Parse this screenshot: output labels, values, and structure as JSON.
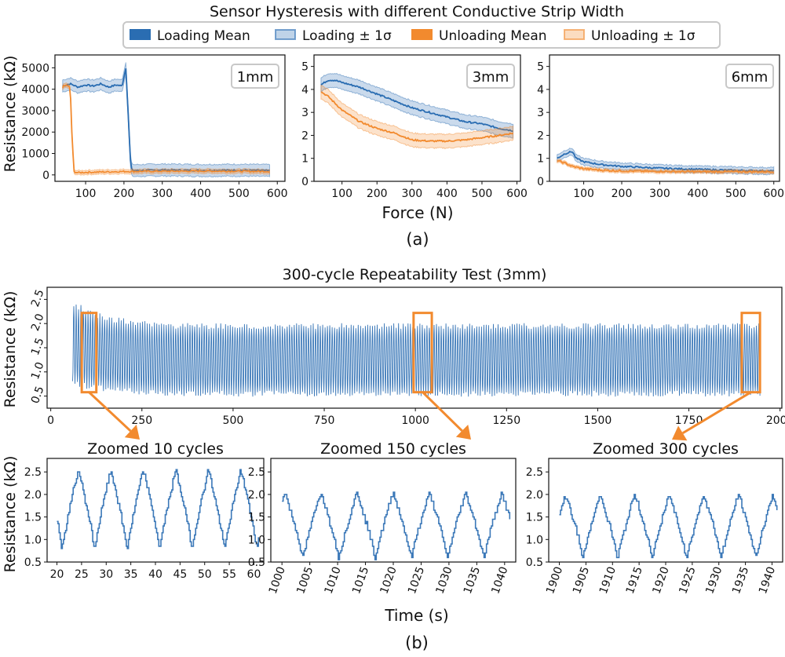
{
  "figure": {
    "top_title": "Sensor Hysteresis with different Conductive Strip Width",
    "label_a": "(a)",
    "label_b": "(b)",
    "xlabel_a": "Force (N)",
    "xlabel_b": "Time (s)",
    "ylabel": "Resistance (kΩ)",
    "colors": {
      "loading": "#2a6db2",
      "unloading": "#f28a2e",
      "zoom_box": "#f28a2e",
      "trace": "#3b78b8"
    }
  },
  "chart_data": [
    {
      "id": "hyst-1mm",
      "type": "line",
      "panel_label": "1mm",
      "xlim": [
        20,
        620
      ],
      "ylim": [
        -300,
        5600
      ],
      "xticks": [
        100,
        200,
        300,
        400,
        500,
        600
      ],
      "yticks": [
        0,
        1000,
        2000,
        3000,
        4000,
        5000
      ],
      "legend": [
        "Loading Mean",
        "Loading ± 1σ",
        "Unloading Mean",
        "Unloading ± 1σ"
      ],
      "series": [
        {
          "name": "Loading Mean",
          "x": [
            40,
            60,
            80,
            100,
            120,
            140,
            160,
            180,
            195,
            205,
            212,
            218,
            225,
            300,
            400,
            500,
            580
          ],
          "values": [
            4150,
            4250,
            4100,
            4200,
            4150,
            4250,
            4100,
            4200,
            4150,
            5000,
            2500,
            300,
            200,
            230,
            210,
            220,
            200
          ],
          "band": 280
        },
        {
          "name": "Unloading Mean",
          "x": [
            40,
            50,
            60,
            65,
            70,
            80,
            100,
            150,
            200,
            300,
            400,
            500,
            580
          ],
          "values": [
            4100,
            4200,
            4050,
            1500,
            150,
            100,
            120,
            140,
            160,
            170,
            180,
            170,
            160
          ],
          "band": 100
        }
      ]
    },
    {
      "id": "hyst-3mm",
      "type": "line",
      "panel_label": "3mm",
      "xlim": [
        20,
        610
      ],
      "ylim": [
        0,
        5.5
      ],
      "xticks": [
        100,
        200,
        300,
        400,
        500,
        600
      ],
      "yticks": [
        0,
        1,
        2,
        3,
        4,
        5
      ],
      "series": [
        {
          "name": "Loading Mean",
          "x": [
            40,
            60,
            80,
            100,
            150,
            200,
            250,
            300,
            350,
            400,
            450,
            500,
            550,
            590
          ],
          "values": [
            4.2,
            4.4,
            4.4,
            4.3,
            4.1,
            3.8,
            3.5,
            3.2,
            3.0,
            2.8,
            2.6,
            2.5,
            2.3,
            2.2
          ],
          "band": 0.3
        },
        {
          "name": "Unloading Mean",
          "x": [
            40,
            60,
            80,
            100,
            150,
            200,
            250,
            300,
            350,
            400,
            450,
            500,
            550,
            590
          ],
          "values": [
            3.9,
            3.7,
            3.4,
            3.1,
            2.6,
            2.3,
            2.1,
            1.8,
            1.75,
            1.75,
            1.8,
            1.9,
            2.0,
            2.1
          ],
          "band": 0.3
        }
      ]
    },
    {
      "id": "hyst-6mm",
      "type": "line",
      "panel_label": "6mm",
      "xlim": [
        10,
        615
      ],
      "ylim": [
        0,
        5.5
      ],
      "xticks": [
        100,
        200,
        300,
        400,
        500,
        600
      ],
      "yticks": [
        0,
        1,
        2,
        3,
        4,
        5
      ],
      "series": [
        {
          "name": "Loading Mean",
          "x": [
            30,
            50,
            70,
            80,
            100,
            150,
            200,
            300,
            400,
            500,
            600
          ],
          "values": [
            1.0,
            1.2,
            1.3,
            1.0,
            0.85,
            0.72,
            0.65,
            0.57,
            0.52,
            0.48,
            0.45
          ],
          "band": 0.15
        },
        {
          "name": "Unloading Mean",
          "x": [
            30,
            50,
            70,
            100,
            150,
            200,
            300,
            400,
            500,
            600
          ],
          "values": [
            0.9,
            0.8,
            0.65,
            0.55,
            0.48,
            0.45,
            0.43,
            0.42,
            0.42,
            0.42
          ],
          "band": 0.07
        }
      ]
    },
    {
      "id": "repeatability",
      "type": "line",
      "title": "300-cycle Repeatability Test (3mm)",
      "xlim": [
        -10,
        2005
      ],
      "ylim": [
        0.25,
        2.75
      ],
      "xticks": [
        0,
        250,
        500,
        750,
        1000,
        1250,
        1500,
        1750,
        2000
      ],
      "yticks": [
        0.5,
        1.0,
        1.5,
        2.0,
        2.5
      ],
      "period_s": 6.5,
      "t_range": [
        60,
        1945
      ],
      "envelope": {
        "t": [
          60,
          150,
          300,
          1000,
          1945
        ],
        "max": [
          2.4,
          2.1,
          1.95,
          1.95,
          1.95
        ],
        "min": [
          0.75,
          0.65,
          0.55,
          0.55,
          0.55
        ]
      },
      "zoom_regions": [
        [
          85,
          125
        ],
        [
          995,
          1045
        ],
        [
          1895,
          1945
        ]
      ]
    },
    {
      "id": "zoom-10",
      "type": "line",
      "title": "Zoomed 10 cycles",
      "xlim": [
        18,
        62
      ],
      "ylim": [
        0.5,
        2.8
      ],
      "xticks": [
        20,
        25,
        30,
        35,
        40,
        45,
        50,
        55,
        60
      ],
      "yticks": [
        0.5,
        1.0,
        1.5,
        2.0,
        2.5
      ],
      "period_s": 6.6,
      "phase_s": 21.0,
      "peak": 2.55,
      "trough": 0.75,
      "t_range": [
        20,
        61
      ]
    },
    {
      "id": "zoom-150",
      "type": "line",
      "title": "Zoomed 150 cycles",
      "xlim": [
        998,
        1042
      ],
      "ylim": [
        0.5,
        2.8
      ],
      "xticks": [
        1000,
        1005,
        1010,
        1015,
        1020,
        1025,
        1030,
        1035,
        1040
      ],
      "yticks": [
        0.5,
        1.0,
        1.5,
        2.0,
        2.5
      ],
      "period_s": 6.5,
      "phase_s": 997.2,
      "peak": 2.05,
      "trough": 0.55,
      "t_range": [
        1000,
        1041
      ]
    },
    {
      "id": "zoom-300",
      "type": "line",
      "title": "Zoomed 300 cycles",
      "xlim": [
        1898,
        1942
      ],
      "ylim": [
        0.5,
        2.8
      ],
      "xticks": [
        1900,
        1905,
        1910,
        1915,
        1920,
        1925,
        1930,
        1935,
        1940
      ],
      "yticks": [
        0.5,
        1.0,
        1.5,
        2.0,
        2.5
      ],
      "period_s": 6.5,
      "phase_s": 1897.9,
      "peak": 2.0,
      "trough": 0.55,
      "t_range": [
        1900,
        1941
      ]
    }
  ]
}
